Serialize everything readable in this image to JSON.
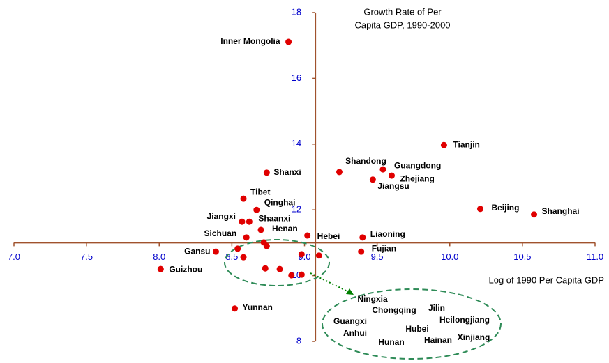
{
  "chart_data": {
    "type": "scatter",
    "title_lines": [
      "Growth Rate of Per",
      "Capita GDP, 1990-2000"
    ],
    "x_label": "Log of 1990 Per Capita GDP",
    "xlim": [
      7,
      11
    ],
    "ylim": [
      8,
      18
    ],
    "xticks": [
      {
        "value": 7,
        "label": "7.0"
      },
      {
        "value": 7.5,
        "label": "7.5"
      },
      {
        "value": 8,
        "label": "8.0"
      },
      {
        "value": 8.5,
        "label": "8.5"
      },
      {
        "value": 9,
        "label": "9.0"
      },
      {
        "value": 9.5,
        "label": "9.5"
      },
      {
        "value": 10,
        "label": "10.0"
      },
      {
        "value": 10.5,
        "label": "10.5"
      },
      {
        "value": 11,
        "label": "11.0"
      }
    ],
    "yticks": [
      8,
      10,
      12,
      14,
      16,
      18
    ],
    "x_axis_at": 11,
    "y_axis_at": 9.075,
    "axis_color": "#a0522d",
    "tick_label_color": "#0000cc",
    "color": "#e00000",
    "labels": [
      "Inner Mongolia",
      "Tianjin",
      "Shanxi",
      "Shandong",
      "Guangdong",
      "Zhejiang",
      "Jiangsu",
      "Tibet",
      "Qinghai",
      "Jiangxi",
      "Shaanxi",
      "Beijing",
      "Shanghai",
      "Henan",
      "Sichuan",
      "Hebei",
      "Liaoning",
      "Fujian",
      "Gansu",
      "Guizhou",
      "Yunnan",
      null,
      null,
      null,
      null,
      null,
      null,
      null,
      null,
      null,
      null
    ],
    "x": [
      8.89,
      9.96,
      8.74,
      9.24,
      9.54,
      9.6,
      9.47,
      8.58,
      8.67,
      8.57,
      8.62,
      10.21,
      10.58,
      8.7,
      8.6,
      9.02,
      9.4,
      9.39,
      8.39,
      8.01,
      8.52,
      8.54,
      8.58,
      8.72,
      8.74,
      8.98,
      9.1,
      8.73,
      8.83,
      8.91,
      8.98
    ],
    "values": [
      17.11,
      13.97,
      13.13,
      13.15,
      13.23,
      13.04,
      12.92,
      12.34,
      12.0,
      11.64,
      11.64,
      12.03,
      11.86,
      11.39,
      11.16,
      11.22,
      11.16,
      10.73,
      10.73,
      10.2,
      9.0,
      10.82,
      10.56,
      11.01,
      10.9,
      10.65,
      10.61,
      10.22,
      10.2,
      10.01,
      10.03
    ],
    "cluster_labels": [
      "Ningxia",
      "Chongqing",
      "Jilin",
      "Guangxi",
      "Heilongjiang",
      "Hubei",
      "Anhui",
      "Hainan",
      "Xinjiang",
      "Hunan"
    ],
    "cluster_color": "#2e8b57"
  }
}
